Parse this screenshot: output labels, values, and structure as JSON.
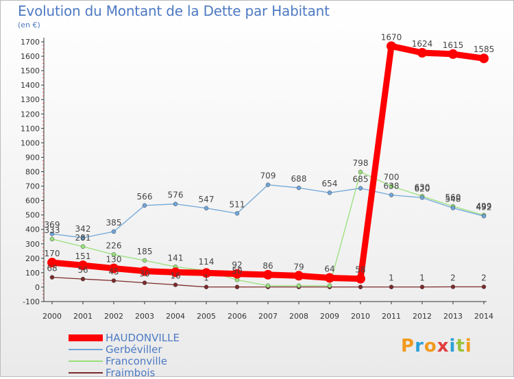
{
  "header": {
    "title": "Evolution du Montant de la Dette par Habitant",
    "subtitle": "(en €)"
  },
  "logo": {
    "text": "Proxiti",
    "colors": [
      "#f29a1e",
      "#2aa0d8",
      "#f29a1e",
      "#e23c3c",
      "#2aa0d8",
      "#9bc23c",
      "#f29a1e"
    ]
  },
  "chart_data": {
    "type": "line",
    "title": "Evolution du Montant de la Dette par Habitant",
    "subtitle": "(en €)",
    "xlabel": "",
    "ylabel": "",
    "x": [
      "2000",
      "2001",
      "2002",
      "2003",
      "2004",
      "2005",
      "2006",
      "2007",
      "2008",
      "2009",
      "2010",
      "2011",
      "2012",
      "2013",
      "2014"
    ],
    "ylim": [
      -100,
      1700
    ],
    "yticks": [
      -100,
      0,
      100,
      200,
      300,
      400,
      500,
      600,
      700,
      800,
      900,
      1000,
      1100,
      1200,
      1300,
      1400,
      1500,
      1600,
      1700
    ],
    "grid": false,
    "legend_position": "bottom-left",
    "series": [
      {
        "name": "HAUDONVILLE",
        "color": "#ff0000",
        "values": [
          170,
          151,
          130,
          111,
          103,
          98,
          92,
          86,
          79,
          64,
          58,
          1670,
          1624,
          1615,
          1585
        ],
        "labels": [
          "170",
          "151",
          "130",
          "",
          "",
          "",
          "92",
          "86",
          "79",
          "64",
          "58",
          "1670",
          "1624",
          "1615",
          "1585"
        ]
      },
      {
        "name": "Gerbéviller",
        "color": "#6fa6d9",
        "values": [
          369,
          342,
          385,
          566,
          576,
          547,
          511,
          709,
          688,
          654,
          685,
          638,
          620,
          548,
          492
        ],
        "labels": [
          "369",
          "342",
          "385",
          "566",
          "576",
          "547",
          "511",
          "709",
          "688",
          "654",
          "685",
          "638",
          "620",
          "548",
          "492"
        ]
      },
      {
        "name": "Franconville",
        "color": "#99e07a",
        "values": [
          333,
          281,
          226,
          185,
          141,
          114,
          50,
          10,
          10,
          10,
          798,
          700,
          630,
          560,
          499
        ],
        "labels": [
          "333",
          "281",
          "226",
          "185",
          "141",
          "114",
          "50",
          "",
          "",
          "",
          "798",
          "700",
          "630",
          "560",
          "499"
        ]
      },
      {
        "name": "Fraimbois",
        "color": "#7b2a2a",
        "values": [
          68,
          56,
          45,
          30,
          16,
          1,
          1,
          1,
          1,
          1,
          1,
          1,
          1,
          2,
          2
        ],
        "labels": [
          "68",
          "56",
          "45",
          "30",
          "16",
          "1",
          "",
          "",
          "",
          "",
          "",
          "1",
          "1",
          "2",
          "2"
        ]
      }
    ]
  }
}
